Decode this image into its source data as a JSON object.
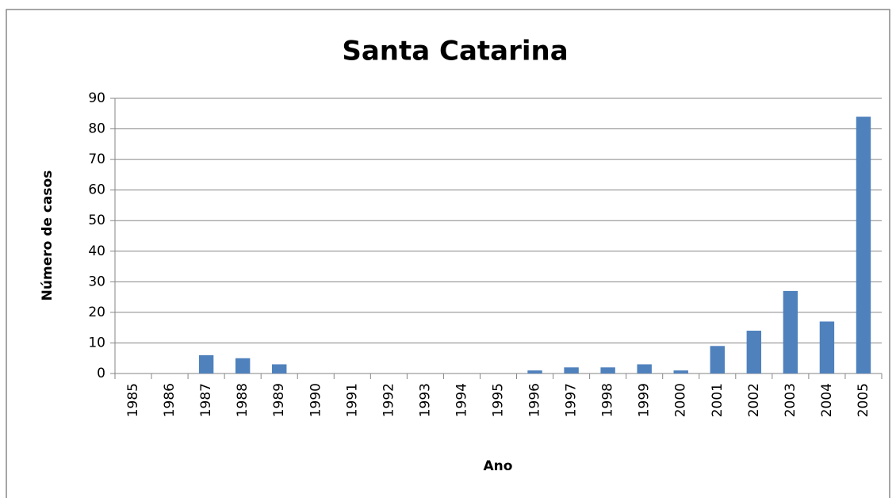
{
  "chart_data": {
    "type": "bar",
    "title": "Santa Catarina",
    "x_label": "Ano",
    "y_label": "Número de casos",
    "categories": [
      "1985",
      "1986",
      "1987",
      "1988",
      "1989",
      "1990",
      "1991",
      "1992",
      "1993",
      "1994",
      "1995",
      "1996",
      "1997",
      "1998",
      "1999",
      "2000",
      "2001",
      "2002",
      "2003",
      "2004",
      "2005"
    ],
    "values": [
      0,
      0,
      6,
      5,
      3,
      0,
      0,
      0,
      0,
      0,
      0,
      1,
      2,
      2,
      3,
      1,
      9,
      14,
      27,
      17,
      84
    ],
    "color": "#4f81bd",
    "ylim": [
      0,
      90
    ],
    "yticks": [
      0,
      10,
      20,
      30,
      40,
      50,
      60,
      70,
      80,
      90
    ],
    "grid": true
  }
}
